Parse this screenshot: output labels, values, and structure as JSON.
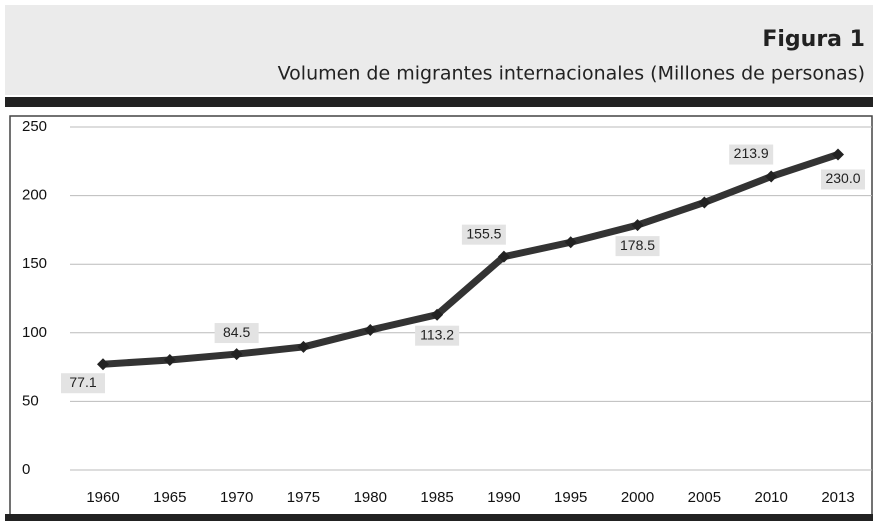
{
  "chart_data": {
    "type": "line",
    "title": "Figura 1",
    "subtitle": "Volumen de migrantes internacionales (Millones de personas)",
    "categories": [
      "1960",
      "1965",
      "1970",
      "1975",
      "1980",
      "1985",
      "1990",
      "1995",
      "2000",
      "2005",
      "2010",
      "2013"
    ],
    "series": [
      {
        "color": "#333333",
        "values": [
          77.1,
          80.2,
          84.5,
          89.7,
          102,
          113.2,
          155.5,
          166,
          178.5,
          195,
          213.9,
          230.0
        ],
        "value_labels": [
          "77.1",
          null,
          "84.5",
          null,
          null,
          "113.2",
          "155.5",
          null,
          "178.5",
          null,
          "213.9",
          "230.0"
        ]
      }
    ],
    "ylim": [
      0,
      250
    ],
    "yticks": [
      0,
      50,
      100,
      150,
      200,
      250
    ],
    "grid": true
  }
}
